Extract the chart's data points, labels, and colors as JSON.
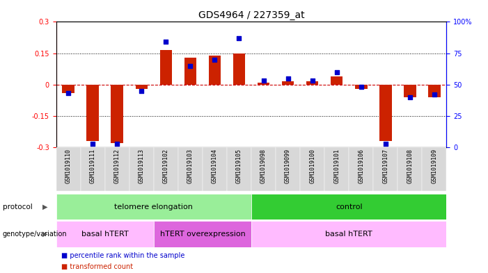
{
  "title": "GDS4964 / 227359_at",
  "samples": [
    "GSM1019110",
    "GSM1019111",
    "GSM1019112",
    "GSM1019113",
    "GSM1019102",
    "GSM1019103",
    "GSM1019104",
    "GSM1019105",
    "GSM1019098",
    "GSM1019099",
    "GSM1019100",
    "GSM1019101",
    "GSM1019106",
    "GSM1019107",
    "GSM1019108",
    "GSM1019109"
  ],
  "transformed_count": [
    -0.04,
    -0.27,
    -0.28,
    -0.02,
    0.165,
    0.13,
    0.14,
    0.15,
    0.01,
    0.015,
    0.015,
    0.04,
    -0.02,
    -0.27,
    -0.06,
    -0.06
  ],
  "percentile_rank": [
    43,
    3,
    3,
    45,
    84,
    65,
    70,
    87,
    53,
    55,
    53,
    60,
    48,
    3,
    40,
    42
  ],
  "ylim_left": [
    -0.3,
    0.3
  ],
  "ylim_right": [
    0,
    100
  ],
  "yticks_left": [
    -0.3,
    -0.15,
    0.0,
    0.15,
    0.3
  ],
  "yticks_right": [
    0,
    25,
    50,
    75,
    100
  ],
  "bar_color": "#cc2200",
  "dot_color": "#0000cc",
  "zero_line_color": "#cc0000",
  "protocol_groups": [
    {
      "label": "telomere elongation",
      "start": 0,
      "end": 7,
      "color": "#99ee99"
    },
    {
      "label": "control",
      "start": 8,
      "end": 15,
      "color": "#33cc33"
    }
  ],
  "genotype_groups": [
    {
      "label": "basal hTERT",
      "start": 0,
      "end": 3,
      "color": "#ffbbff"
    },
    {
      "label": "hTERT overexpression",
      "start": 4,
      "end": 7,
      "color": "#dd66dd"
    },
    {
      "label": "basal hTERT",
      "start": 8,
      "end": 15,
      "color": "#ffbbff"
    }
  ],
  "legend_items": [
    {
      "label": "transformed count",
      "color": "#cc2200"
    },
    {
      "label": "percentile rank within the sample",
      "color": "#0000cc"
    }
  ]
}
